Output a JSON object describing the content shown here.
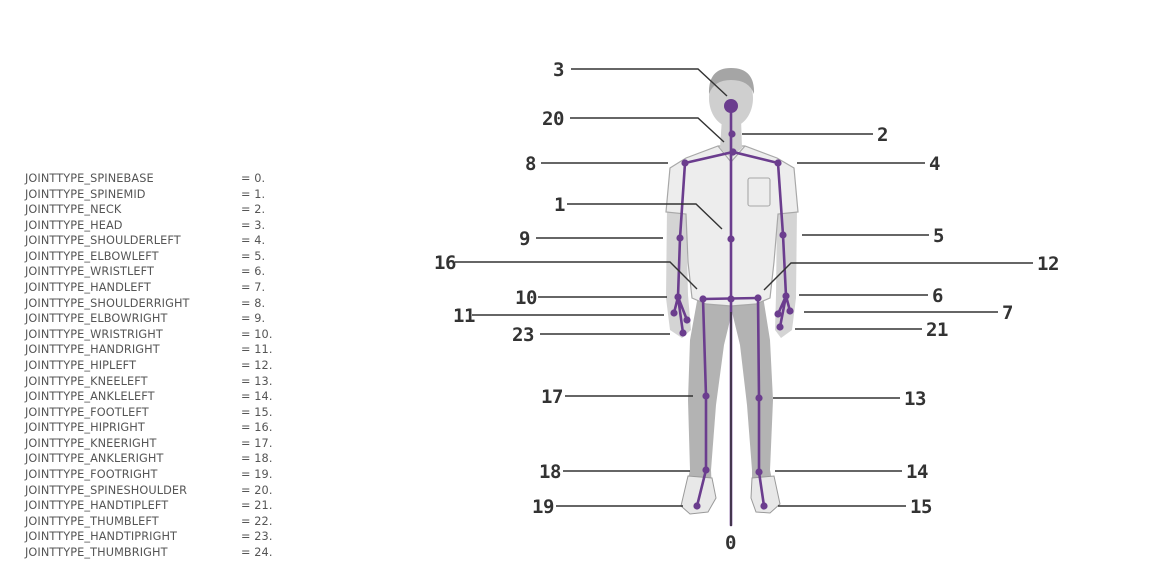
{
  "joint_list": [
    {
      "name": "JOINTTYPE_SPINEBASE",
      "value": "= 0."
    },
    {
      "name": "JOINTTYPE_SPINEMID",
      "value": "= 1."
    },
    {
      "name": "JOINTTYPE_NECK",
      "value": "= 2."
    },
    {
      "name": "JOINTTYPE_HEAD",
      "value": "= 3."
    },
    {
      "name": "JOINTTYPE_SHOULDERLEFT",
      "value": "= 4."
    },
    {
      "name": "JOINTTYPE_ELBOWLEFT",
      "value": "= 5."
    },
    {
      "name": "JOINTTYPE_WRISTLEFT",
      "value": "= 6."
    },
    {
      "name": "JOINTTYPE_HANDLEFT",
      "value": "= 7."
    },
    {
      "name": "JOINTTYPE_SHOULDERRIGHT",
      "value": "= 8."
    },
    {
      "name": "JOINTTYPE_ELBOWRIGHT",
      "value": "= 9."
    },
    {
      "name": "JOINTTYPE_WRISTRIGHT",
      "value": "= 10."
    },
    {
      "name": "JOINTTYPE_HANDRIGHT",
      "value": "= 11."
    },
    {
      "name": "JOINTTYPE_HIPLEFT",
      "value": "= 12."
    },
    {
      "name": "JOINTTYPE_KNEELEFT",
      "value": "= 13."
    },
    {
      "name": "JOINTTYPE_ANKLELEFT",
      "value": "= 14."
    },
    {
      "name": "JOINTTYPE_FOOTLEFT",
      "value": "= 15."
    },
    {
      "name": "JOINTTYPE_HIPRIGHT",
      "value": "= 16."
    },
    {
      "name": "JOINTTYPE_KNEERIGHT",
      "value": "= 17."
    },
    {
      "name": "JOINTTYPE_ANKLERIGHT",
      "value": "= 18."
    },
    {
      "name": "JOINTTYPE_FOOTRIGHT",
      "value": "= 19."
    },
    {
      "name": "JOINTTYPE_SPINESHOULDER",
      "value": "= 20."
    },
    {
      "name": "JOINTTYPE_HANDTIPLEFT",
      "value": "= 21."
    },
    {
      "name": "JOINTTYPE_THUMBLEFT",
      "value": "= 22."
    },
    {
      "name": "JOINTTYPE_HANDTIPRIGHT",
      "value": "= 23."
    },
    {
      "name": "JOINTTYPE_THUMBRIGHT",
      "value": "= 24."
    }
  ],
  "callouts": {
    "n0": "0",
    "n1": "1",
    "n2": "2",
    "n3": "3",
    "n4": "4",
    "n5": "5",
    "n6": "6",
    "n7": "7",
    "n8": "8",
    "n9": "9",
    "n10": "10",
    "n11": "11",
    "n12": "12",
    "n13": "13",
    "n14": "14",
    "n15": "15",
    "n16": "16",
    "n17": "17",
    "n18": "18",
    "n19": "19",
    "n20": "20",
    "n21": "21",
    "n23": "23"
  },
  "colors": {
    "skeleton": "#6b3d8e",
    "leader_line": "#333333",
    "shirt": "#ececec",
    "pants": "#b3b3b3",
    "skin": "#d0d0d0"
  }
}
